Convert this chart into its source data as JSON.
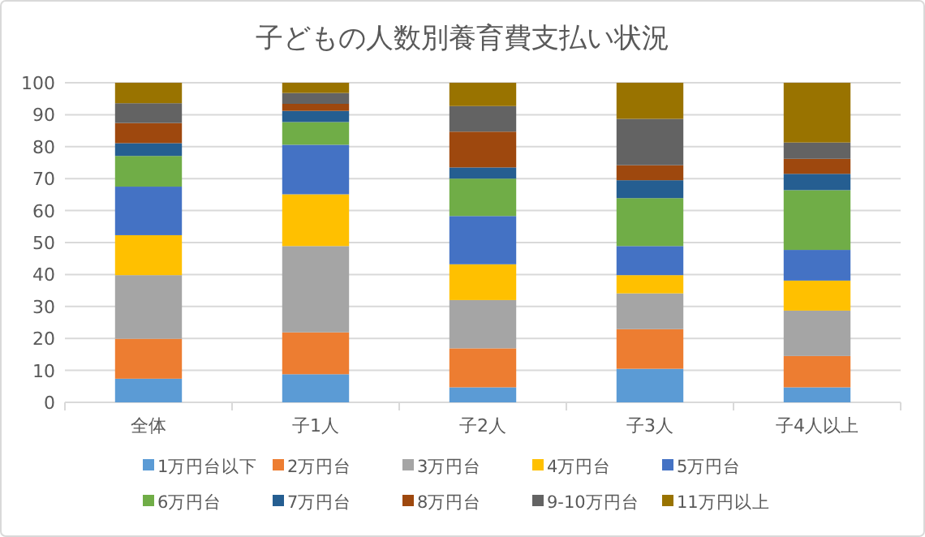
{
  "chart_data": {
    "type": "bar",
    "title": "子どもの人数別養育費支払い状況",
    "stacked": true,
    "categories": [
      "全体",
      "子1人",
      "子2人",
      "子3人",
      "子4人以上"
    ],
    "ylim": [
      0,
      100
    ],
    "yticks": [
      0,
      10,
      20,
      30,
      40,
      50,
      60,
      70,
      80,
      90,
      100
    ],
    "grid": "y",
    "legend": "bottom",
    "series": [
      {
        "name": "1万円台以下",
        "color": "#5b9bd5",
        "values": [
          7.4,
          8.8,
          4.7,
          10.5,
          4.7
        ]
      },
      {
        "name": "2万円台",
        "color": "#ed7d31",
        "values": [
          12.5,
          13.1,
          12.2,
          12.4,
          9.8
        ]
      },
      {
        "name": "3万円台",
        "color": "#a5a5a5",
        "values": [
          19.9,
          27.0,
          15.1,
          11.2,
          14.2
        ]
      },
      {
        "name": "4万円台",
        "color": "#ffc000",
        "values": [
          12.5,
          16.2,
          11.2,
          5.7,
          9.4
        ]
      },
      {
        "name": "5万円台",
        "color": "#4472c4",
        "values": [
          15.2,
          15.5,
          15.1,
          9.1,
          9.6
        ]
      },
      {
        "name": "6万円台",
        "color": "#70ad47",
        "values": [
          9.6,
          7.1,
          11.7,
          15.0,
          18.7
        ]
      },
      {
        "name": "7万円台",
        "color": "#255e91",
        "values": [
          4.0,
          3.5,
          3.5,
          5.6,
          5.1
        ]
      },
      {
        "name": "8万円台",
        "color": "#9e480e",
        "values": [
          6.3,
          2.2,
          11.2,
          4.7,
          4.7
        ]
      },
      {
        "name": "9-10万円台",
        "color": "#636363",
        "values": [
          6.2,
          3.4,
          8.0,
          14.5,
          5.1
        ]
      },
      {
        "name": "11万円以上",
        "color": "#997300",
        "values": [
          6.4,
          3.2,
          7.3,
          11.3,
          18.7
        ]
      }
    ]
  }
}
